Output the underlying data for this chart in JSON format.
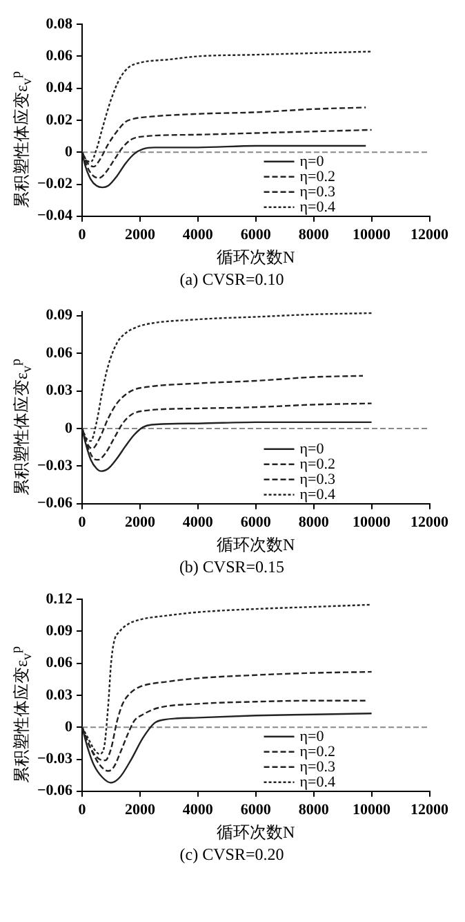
{
  "chart_data": [
    {
      "type": "line",
      "title": "(a) CVSR=0.10",
      "xlabel": "循环次数N",
      "ylabel": "累积塑性体应变ε$_{v}$$^{p}$",
      "xlim": [
        0,
        12000
      ],
      "xticks": [
        0,
        2000,
        4000,
        6000,
        8000,
        10000,
        12000
      ],
      "ylim": [
        -0.04,
        0.08
      ],
      "yticks": [
        -0.04,
        -0.02,
        0,
        0.02,
        0.04,
        0.06,
        0.08
      ],
      "grid": false,
      "legend": "bottom right",
      "marker": "none",
      "ref_lines": [
        {
          "axis": "y",
          "value": 0,
          "color": "#888888",
          "line_style": "dashed"
        }
      ],
      "series": [
        {
          "name": "η=0",
          "color": "#222222",
          "line_style": "solid",
          "x": [
            0,
            100,
            300,
            500,
            700,
            900,
            1200,
            1500,
            1800,
            2100,
            2500,
            4000,
            6000,
            8000,
            9800
          ],
          "values": [
            0,
            -0.008,
            -0.017,
            -0.021,
            -0.022,
            -0.021,
            -0.015,
            -0.007,
            -0.001,
            0.002,
            0.003,
            0.003,
            0.004,
            0.004,
            0.004
          ]
        },
        {
          "name": "η=0.2",
          "color": "#222222",
          "line_style": "dashed",
          "x": [
            0,
            200,
            400,
            600,
            800,
            1100,
            1400,
            1700,
            2200,
            4000,
            6000,
            8000,
            10000
          ],
          "values": [
            0,
            -0.01,
            -0.015,
            -0.016,
            -0.013,
            -0.005,
            0.003,
            0.008,
            0.01,
            0.011,
            0.012,
            0.013,
            0.014
          ]
        },
        {
          "name": "η=0.3",
          "color": "#222222",
          "line_style": "dashed",
          "x": [
            0,
            200,
            400,
            600,
            900,
            1200,
            1500,
            1800,
            2200,
            4000,
            6000,
            8000,
            9800
          ],
          "values": [
            0,
            -0.007,
            -0.009,
            -0.005,
            0.005,
            0.013,
            0.019,
            0.021,
            0.022,
            0.024,
            0.025,
            0.027,
            0.028
          ]
        },
        {
          "name": "η=0.4",
          "color": "#222222",
          "line_style": "dotted",
          "x": [
            0,
            150,
            300,
            500,
            700,
            1000,
            1300,
            1600,
            2000,
            3000,
            4000,
            6000,
            8000,
            10000
          ],
          "values": [
            0,
            -0.005,
            -0.006,
            0.002,
            0.015,
            0.033,
            0.046,
            0.053,
            0.056,
            0.058,
            0.06,
            0.061,
            0.062,
            0.063
          ]
        }
      ]
    },
    {
      "type": "line",
      "title": "(b) CVSR=0.15",
      "xlabel": "循环次数N",
      "ylabel": "累积塑性体应变ε$_{v}$$^{p}$",
      "xlim": [
        0,
        12000
      ],
      "xticks": [
        0,
        2000,
        4000,
        6000,
        8000,
        10000,
        12000
      ],
      "ylim": [
        -0.06,
        0.093
      ],
      "yticks": [
        -0.06,
        -0.03,
        0,
        0.03,
        0.06,
        0.09
      ],
      "grid": false,
      "legend": "bottom right",
      "marker": "none",
      "ref_lines": [
        {
          "axis": "y",
          "value": 0,
          "color": "#888888",
          "line_style": "dashed"
        }
      ],
      "series": [
        {
          "name": "η=0",
          "color": "#222222",
          "line_style": "solid",
          "x": [
            0,
            100,
            300,
            500,
            650,
            900,
            1200,
            1500,
            1800,
            2100,
            2400,
            4000,
            6000,
            8000,
            10000
          ],
          "values": [
            0,
            -0.01,
            -0.025,
            -0.032,
            -0.034,
            -0.032,
            -0.024,
            -0.014,
            -0.005,
            0.001,
            0.003,
            0.004,
            0.005,
            0.005,
            0.005
          ]
        },
        {
          "name": "η=0.2",
          "color": "#222222",
          "line_style": "dashed",
          "x": [
            0,
            200,
            400,
            550,
            800,
            1100,
            1400,
            1700,
            2100,
            4000,
            6000,
            8000,
            10000
          ],
          "values": [
            0,
            -0.015,
            -0.024,
            -0.025,
            -0.02,
            -0.008,
            0.004,
            0.011,
            0.014,
            0.016,
            0.017,
            0.019,
            0.02
          ]
        },
        {
          "name": "η=0.3",
          "color": "#222222",
          "line_style": "dashed",
          "x": [
            0,
            200,
            350,
            600,
            900,
            1200,
            1500,
            1800,
            2200,
            4000,
            6000,
            8000,
            9700
          ],
          "values": [
            0,
            -0.013,
            -0.016,
            -0.008,
            0.008,
            0.02,
            0.027,
            0.031,
            0.033,
            0.036,
            0.038,
            0.041,
            0.042
          ]
        },
        {
          "name": "η=0.4",
          "color": "#222222",
          "line_style": "dotted",
          "x": [
            0,
            150,
            300,
            500,
            700,
            900,
            1200,
            1500,
            1800,
            2200,
            4000,
            6000,
            8000,
            10000
          ],
          "values": [
            0,
            -0.008,
            -0.01,
            0.005,
            0.03,
            0.05,
            0.068,
            0.076,
            0.08,
            0.083,
            0.087,
            0.089,
            0.091,
            0.092
          ]
        }
      ]
    },
    {
      "type": "line",
      "title": "(c) CVSR=0.20",
      "xlabel": "循环次数N",
      "ylabel": "累积塑性体应变ε$_{v}$$^{p}$",
      "xlim": [
        0,
        12000
      ],
      "xticks": [
        0,
        2000,
        4000,
        6000,
        8000,
        10000,
        12000
      ],
      "ylim": [
        -0.06,
        0.12
      ],
      "yticks": [
        -0.06,
        -0.03,
        0,
        0.03,
        0.06,
        0.09,
        0.12
      ],
      "grid": false,
      "legend": "bottom right",
      "marker": "none",
      "ref_lines": [
        {
          "axis": "y",
          "value": 0,
          "color": "#888888",
          "line_style": "dashed"
        }
      ],
      "series": [
        {
          "name": "η=0",
          "color": "#222222",
          "line_style": "solid",
          "x": [
            0,
            200,
            400,
            700,
            1000,
            1300,
            1700,
            2100,
            2500,
            2800,
            4000,
            6000,
            8000,
            10000
          ],
          "values": [
            0,
            -0.02,
            -0.035,
            -0.047,
            -0.052,
            -0.047,
            -0.03,
            -0.01,
            0.004,
            0.007,
            0.009,
            0.011,
            0.012,
            0.013
          ]
        },
        {
          "name": "η=0.2",
          "color": "#222222",
          "line_style": "dashed",
          "x": [
            0,
            300,
            600,
            900,
            1100,
            1300,
            1600,
            1800,
            2100,
            2600,
            4000,
            6000,
            8000,
            9800
          ],
          "values": [
            0,
            -0.02,
            -0.035,
            -0.041,
            -0.037,
            -0.025,
            -0.005,
            0.006,
            0.012,
            0.018,
            0.022,
            0.024,
            0.025,
            0.025
          ]
        },
        {
          "name": "η=0.3",
          "color": "#222222",
          "line_style": "dashed",
          "x": [
            0,
            300,
            600,
            800,
            1000,
            1200,
            1400,
            1700,
            2000,
            3000,
            4000,
            6000,
            8000,
            10000
          ],
          "values": [
            0,
            -0.02,
            -0.03,
            -0.031,
            -0.02,
            0.005,
            0.022,
            0.033,
            0.038,
            0.043,
            0.046,
            0.049,
            0.051,
            0.052
          ]
        },
        {
          "name": "η=0.4",
          "color": "#222222",
          "line_style": "dotted",
          "x": [
            0,
            200,
            400,
            600,
            750,
            900,
            1000,
            1100,
            1300,
            1600,
            2000,
            3000,
            4000,
            6000,
            8000,
            10000
          ],
          "values": [
            0,
            -0.01,
            -0.02,
            -0.025,
            -0.02,
            0.02,
            0.06,
            0.08,
            0.09,
            0.097,
            0.101,
            0.105,
            0.108,
            0.111,
            0.113,
            0.115
          ]
        }
      ]
    }
  ]
}
